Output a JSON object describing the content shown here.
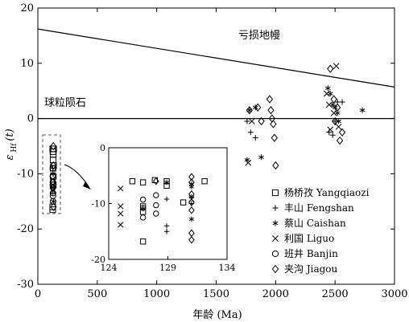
{
  "chart_data": [
    {
      "type": "scatter",
      "xlabel": "年龄 (Ma)",
      "ylabel_main": "ε",
      "ylabel_sub": "Hf",
      "ylabel_paren": "(t)",
      "xlim": [
        0,
        3000
      ],
      "ylim": [
        -30,
        20
      ],
      "xticks": [
        "0",
        "500",
        "1000",
        "1500",
        "2000",
        "2500",
        "3000"
      ],
      "yticks": [
        "20",
        "10",
        "0",
        "-10",
        "-20",
        "-30"
      ],
      "x_tick_values": [
        0,
        500,
        1000,
        1500,
        2000,
        2500,
        3000
      ],
      "y_tick_values": [
        20,
        10,
        0,
        -10,
        -20,
        -30
      ],
      "grid": false,
      "legend_position": "bottom-right",
      "reference_lines": [
        {
          "label": "亏损地幔",
          "x": [
            0,
            3000
          ],
          "y": [
            16.2,
            5.7
          ]
        },
        {
          "label": "球粒陨石",
          "x": [
            0,
            3000
          ],
          "y": [
            0,
            0
          ]
        }
      ],
      "series": [
        {
          "name": "杨桥孜 Yangqiaozi",
          "marker": "square",
          "x": [
            125,
            127,
            130,
            133,
            125,
            130,
            128,
            132,
            125,
            128,
            130
          ],
          "y": [
            -5.5,
            -6,
            -6.5,
            -5.5,
            -16,
            -10.5,
            -9,
            -8.5,
            -16.5,
            -7.5,
            -12
          ]
        },
        {
          "name": "丰山 Fengshan",
          "marker": "plus",
          "x": [
            1760,
            1790,
            1830,
            2450,
            2480,
            2500,
            2520,
            2560,
            125,
            127,
            129
          ],
          "y": [
            -0.5,
            -2.5,
            -3.5,
            -2.5,
            -3,
            -0.5,
            3,
            3,
            -9,
            -13.5,
            -10
          ]
        },
        {
          "name": "蔡山 Caishan",
          "marker": "asterisk",
          "x": [
            1760,
            1780,
            1830,
            1880,
            2440,
            2460,
            2480,
            2500,
            2520,
            2530,
            2730,
            127,
            130,
            131
          ],
          "y": [
            -7.5,
            1.5,
            2,
            -7,
            5.5,
            4.5,
            2.5,
            2,
            1,
            -0.5,
            1.5,
            -10,
            -12.5,
            -15
          ]
        },
        {
          "name": "利国 Liguo",
          "marker": "x",
          "x": [
            1770,
            1800,
            2430,
            2450,
            2460,
            2490,
            2510,
            2530,
            125,
            126,
            127
          ],
          "y": [
            -8,
            -0.5,
            4.5,
            2.5,
            -2,
            1,
            9.5,
            -1.5,
            -11,
            -12,
            -13
          ]
        },
        {
          "name": "班井 Banjin",
          "marker": "circle",
          "x": [
            125.5,
            126,
            126.5,
            127,
            127.5,
            128,
            126,
            127
          ],
          "y": [
            -9,
            -10.5,
            -11.5,
            -12.5,
            -13.5,
            -15,
            -12,
            -14
          ]
        },
        {
          "name": "夹沟 Jiagou",
          "marker": "diamond",
          "x": [
            1780,
            1850,
            1880,
            1950,
            1960,
            1970,
            1980,
            1990,
            2000,
            2460,
            2490,
            2500,
            2520,
            2540,
            2560,
            130,
            131,
            132
          ],
          "y": [
            1.5,
            2,
            -0.5,
            3.5,
            1.5,
            0,
            -1,
            -3.5,
            -8.5,
            9,
            3.5,
            -0.5,
            2,
            -4,
            -2.5,
            -5,
            -8.5,
            -16
          ]
        }
      ],
      "legend": [
        "杨桥孜 Yangqiaozi",
        "丰山 Fengshan",
        "蔡山 Caishan",
        "利国 Liguo",
        "班井 Banjin",
        "夹沟 Jiagou"
      ]
    },
    {
      "type": "scatter",
      "inset": true,
      "xlim": [
        124,
        134
      ],
      "ylim": [
        -20,
        0
      ],
      "xticks": [
        "124",
        "129",
        "134"
      ],
      "yticks": [
        "0",
        "-10",
        "-20"
      ],
      "x_tick_values": [
        124,
        129,
        134
      ],
      "y_tick_values": [
        0,
        -10,
        -20
      ],
      "series": [
        {
          "name": "Yangqiaozi",
          "marker": "square",
          "x": [
            126.0,
            126.9,
            127.9,
            128.9,
            128.9,
            130.3,
            132.1,
            126.9,
            126.9,
            126.9
          ],
          "y": [
            -6.0,
            -6.2,
            -5.8,
            -6.0,
            -6.8,
            -9.8,
            -6.0,
            -10.5,
            -11.5,
            -16.8
          ]
        },
        {
          "name": "Fengshan",
          "marker": "plus",
          "x": [
            126.9,
            128.9,
            128.9,
            128.9,
            131.0
          ],
          "y": [
            -10.8,
            -9.2,
            -14.0,
            -15.0,
            -10.0
          ]
        },
        {
          "name": "Caishan",
          "marker": "asterisk",
          "x": [
            128.9,
            131.0,
            131.0,
            131.0,
            131.0
          ],
          "y": [
            -6.2,
            -6.5,
            -8.8,
            -12.8,
            -7.0
          ]
        },
        {
          "name": "Liguo",
          "marker": "x",
          "x": [
            125.0,
            125.0,
            125.0,
            125.0,
            131.0
          ],
          "y": [
            -7.3,
            -10.5,
            -11.8,
            -13.8,
            -9.2
          ]
        },
        {
          "name": "Banjin",
          "marker": "circle",
          "x": [
            126.9,
            126.9,
            126.9,
            128.0,
            128.0,
            128.0
          ],
          "y": [
            -9.3,
            -10.8,
            -12.5,
            -8.5,
            -10.3,
            -11.8
          ]
        },
        {
          "name": "Jiagou",
          "marker": "diamond",
          "x": [
            128.0,
            131.0,
            131.0,
            131.0,
            131.0,
            131.0,
            131.0,
            131.0
          ],
          "y": [
            -6.0,
            -5.2,
            -6.2,
            -8.3,
            -15.3,
            -16.5,
            -9.8,
            -11.2
          ]
        }
      ]
    }
  ]
}
